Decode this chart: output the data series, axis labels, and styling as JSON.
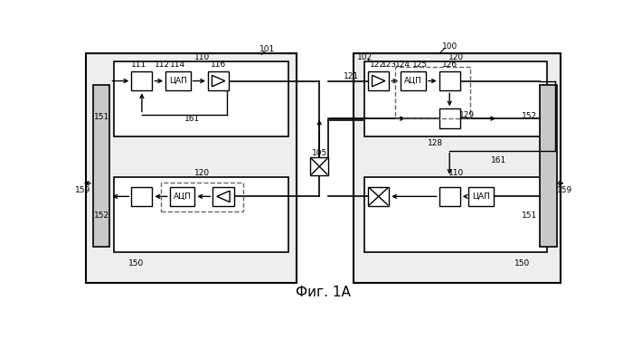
{
  "bg": "#ffffff",
  "gray": "#c8c8c8",
  "dash_color": "#666666",
  "fig_label": "Фиг. 1А",
  "cyap": "ЦАП",
  "acyp": "АЦП"
}
